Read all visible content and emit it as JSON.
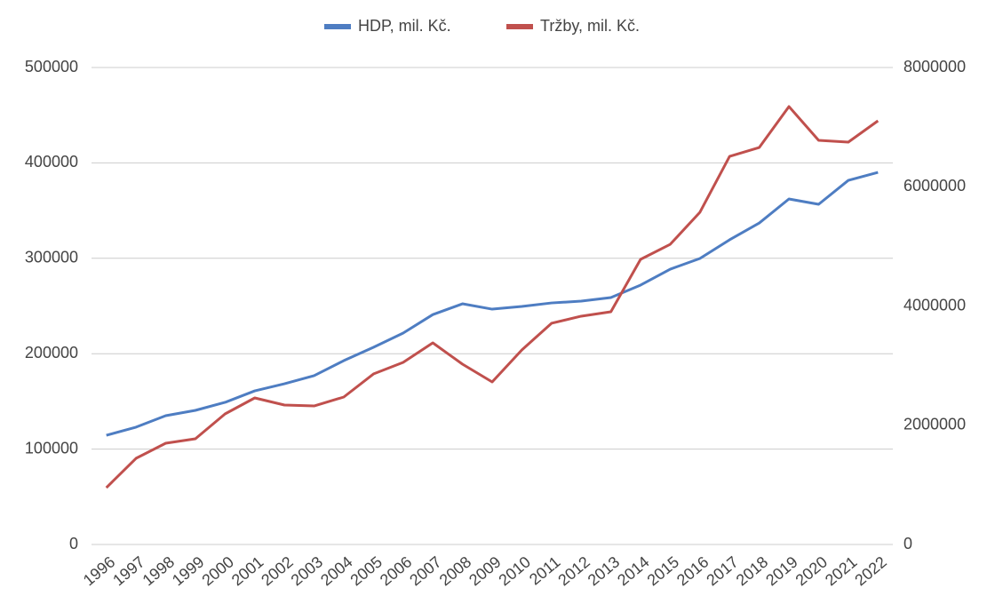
{
  "chart_data": {
    "type": "line",
    "categories": [
      "1996",
      "1997",
      "1998",
      "1999",
      "2000",
      "2001",
      "2002",
      "2003",
      "2004",
      "2005",
      "2006",
      "2007",
      "2008",
      "2009",
      "2010",
      "2011",
      "2012",
      "2013",
      "2014",
      "2015",
      "2016",
      "2017",
      "2018",
      "2019",
      "2020",
      "2021",
      "2022"
    ],
    "series": [
      {
        "name": "HDP, mil. Kč.",
        "color": "#4e7dc2",
        "values": [
          114500,
          123000,
          135000,
          140600,
          149000,
          161000,
          168500,
          177000,
          192700,
          206700,
          221600,
          241000,
          252300,
          246700,
          249500,
          253200,
          255100,
          258800,
          271900,
          288600,
          299800,
          319400,
          337000,
          362200,
          356600,
          381700,
          390100
        ]
      },
      {
        "name": "Tržby, mil. Kč.",
        "color": "#c0504d",
        "axis": "y2",
        "values": [
          953000,
          1445000,
          1698000,
          1773000,
          2190000,
          2458000,
          2339000,
          2324000,
          2473000,
          2860000,
          3054000,
          3382000,
          3024000,
          2726000,
          3263000,
          3710000,
          3829000,
          3903000,
          4782000,
          5035000,
          5572000,
          6510000,
          6659000,
          7345000,
          6779000,
          6749000,
          7106000
        ]
      }
    ],
    "ylim": [
      0,
      500000
    ],
    "yticks": [
      0,
      100000,
      200000,
      300000,
      400000,
      500000
    ],
    "y2lim": [
      0,
      8000000
    ],
    "y2ticks": [
      0,
      2000000,
      4000000,
      6000000,
      8000000
    ],
    "grid": true,
    "legend": "top"
  }
}
